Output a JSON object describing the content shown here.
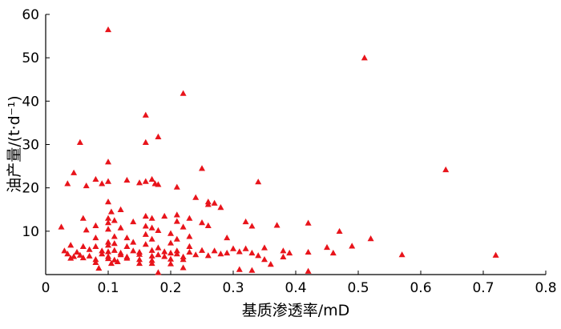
{
  "chart_data": {
    "type": "scatter",
    "title": "",
    "xlabel": "基质渗透率/mD",
    "ylabel": "油产量/(t·d⁻¹)",
    "xlim": [
      0,
      0.8
    ],
    "ylim": [
      0,
      60
    ],
    "x_ticks": [
      "0",
      "0.1",
      "0.2",
      "0.3",
      "0.4",
      "0.5",
      "0.6",
      "0.7",
      "0.8"
    ],
    "y_ticks": [
      "0",
      "10",
      "20",
      "30",
      "40",
      "50",
      "60"
    ],
    "grid": false,
    "marker": "triangle",
    "color": "#e8141b",
    "series": [
      {
        "points": [
          [
            0.1,
            56.5
          ],
          [
            0.51,
            50.0
          ],
          [
            0.22,
            41.8
          ],
          [
            0.16,
            36.8
          ],
          [
            0.18,
            31.8
          ],
          [
            0.16,
            30.5
          ],
          [
            0.055,
            30.5
          ],
          [
            0.1,
            26.0
          ],
          [
            0.25,
            24.5
          ],
          [
            0.64,
            24.2
          ],
          [
            0.045,
            23.5
          ],
          [
            0.035,
            21.0
          ],
          [
            0.08,
            22.0
          ],
          [
            0.09,
            21.0
          ],
          [
            0.1,
            21.5
          ],
          [
            0.13,
            21.8
          ],
          [
            0.15,
            21.2
          ],
          [
            0.16,
            21.5
          ],
          [
            0.17,
            22.0
          ],
          [
            0.175,
            21.0
          ],
          [
            0.18,
            20.8
          ],
          [
            0.34,
            21.4
          ],
          [
            0.21,
            20.2
          ],
          [
            0.065,
            20.5
          ],
          [
            0.24,
            17.8
          ],
          [
            0.1,
            16.8
          ],
          [
            0.26,
            16.8
          ],
          [
            0.27,
            16.5
          ],
          [
            0.26,
            16.2
          ],
          [
            0.28,
            15.5
          ],
          [
            0.12,
            15.0
          ],
          [
            0.105,
            14.5
          ],
          [
            0.06,
            13.0
          ],
          [
            0.1,
            13.0
          ],
          [
            0.16,
            13.5
          ],
          [
            0.17,
            13.0
          ],
          [
            0.19,
            13.5
          ],
          [
            0.21,
            13.8
          ],
          [
            0.23,
            13.0
          ],
          [
            0.1,
            12.0
          ],
          [
            0.11,
            12.5
          ],
          [
            0.14,
            12.2
          ],
          [
            0.21,
            12.3
          ],
          [
            0.25,
            12.0
          ],
          [
            0.32,
            12.2
          ],
          [
            0.42,
            11.9
          ],
          [
            0.025,
            11.0
          ],
          [
            0.08,
            11.3
          ],
          [
            0.16,
            11.2
          ],
          [
            0.17,
            10.8
          ],
          [
            0.22,
            11.0
          ],
          [
            0.26,
            11.3
          ],
          [
            0.33,
            11.2
          ],
          [
            0.37,
            11.4
          ],
          [
            0.065,
            10.3
          ],
          [
            0.1,
            10.5
          ],
          [
            0.12,
            10.8
          ],
          [
            0.18,
            10.2
          ],
          [
            0.47,
            10.0
          ],
          [
            0.16,
            9.3
          ],
          [
            0.2,
            9.5
          ],
          [
            0.23,
            8.8
          ],
          [
            0.08,
            8.5
          ],
          [
            0.11,
            8.8
          ],
          [
            0.13,
            8.5
          ],
          [
            0.17,
            8.2
          ],
          [
            0.21,
            8.2
          ],
          [
            0.29,
            8.5
          ],
          [
            0.52,
            8.3
          ],
          [
            0.1,
            7.5
          ],
          [
            0.11,
            7.2
          ],
          [
            0.14,
            7.5
          ],
          [
            0.16,
            7.0
          ],
          [
            0.2,
            7.3
          ],
          [
            0.04,
            6.8
          ],
          [
            0.06,
            6.5
          ],
          [
            0.08,
            6.5
          ],
          [
            0.1,
            6.8
          ],
          [
            0.13,
            6.5
          ],
          [
            0.18,
            6.2
          ],
          [
            0.23,
            6.5
          ],
          [
            0.3,
            6.0
          ],
          [
            0.32,
            6.0
          ],
          [
            0.35,
            6.2
          ],
          [
            0.45,
            6.3
          ],
          [
            0.49,
            6.6
          ],
          [
            0.03,
            5.5
          ],
          [
            0.05,
            5.2
          ],
          [
            0.07,
            5.8
          ],
          [
            0.09,
            5.5
          ],
          [
            0.1,
            5.3
          ],
          [
            0.11,
            5.6
          ],
          [
            0.12,
            5.0
          ],
          [
            0.14,
            5.5
          ],
          [
            0.15,
            5.2
          ],
          [
            0.17,
            5.6
          ],
          [
            0.19,
            5.3
          ],
          [
            0.2,
            5.0
          ],
          [
            0.21,
            5.5
          ],
          [
            0.23,
            5.2
          ],
          [
            0.25,
            5.6
          ],
          [
            0.27,
            5.5
          ],
          [
            0.29,
            5.0
          ],
          [
            0.31,
            5.3
          ],
          [
            0.33,
            5.0
          ],
          [
            0.38,
            5.5
          ],
          [
            0.39,
            5.0
          ],
          [
            0.42,
            5.2
          ],
          [
            0.46,
            5.0
          ],
          [
            0.57,
            4.6
          ],
          [
            0.72,
            4.5
          ],
          [
            0.035,
            4.8
          ],
          [
            0.045,
            4.2
          ],
          [
            0.055,
            4.5
          ],
          [
            0.07,
            4.3
          ],
          [
            0.09,
            4.8
          ],
          [
            0.1,
            4.2
          ],
          [
            0.12,
            4.6
          ],
          [
            0.13,
            4.1
          ],
          [
            0.15,
            4.7
          ],
          [
            0.17,
            4.3
          ],
          [
            0.18,
            4.6
          ],
          [
            0.19,
            4.2
          ],
          [
            0.21,
            4.8
          ],
          [
            0.22,
            4.1
          ],
          [
            0.24,
            4.6
          ],
          [
            0.26,
            4.4
          ],
          [
            0.28,
            4.8
          ],
          [
            0.34,
            4.4
          ],
          [
            0.38,
            4.1
          ],
          [
            0.04,
            3.8
          ],
          [
            0.06,
            3.9
          ],
          [
            0.08,
            3.5
          ],
          [
            0.1,
            3.7
          ],
          [
            0.11,
            3.4
          ],
          [
            0.13,
            3.8
          ],
          [
            0.15,
            3.5
          ],
          [
            0.17,
            3.3
          ],
          [
            0.2,
            3.6
          ],
          [
            0.22,
            3.5
          ],
          [
            0.35,
            3.5
          ],
          [
            0.15,
            2.6
          ],
          [
            0.17,
            2.6
          ],
          [
            0.08,
            2.8
          ],
          [
            0.105,
            2.6
          ],
          [
            0.115,
            3.0
          ],
          [
            0.2,
            2.5
          ],
          [
            0.36,
            2.4
          ],
          [
            0.085,
            1.5
          ],
          [
            0.22,
            1.6
          ],
          [
            0.31,
            1.2
          ],
          [
            0.33,
            1.0
          ],
          [
            0.42,
            0.8
          ],
          [
            0.18,
            0.5
          ]
        ]
      }
    ]
  }
}
